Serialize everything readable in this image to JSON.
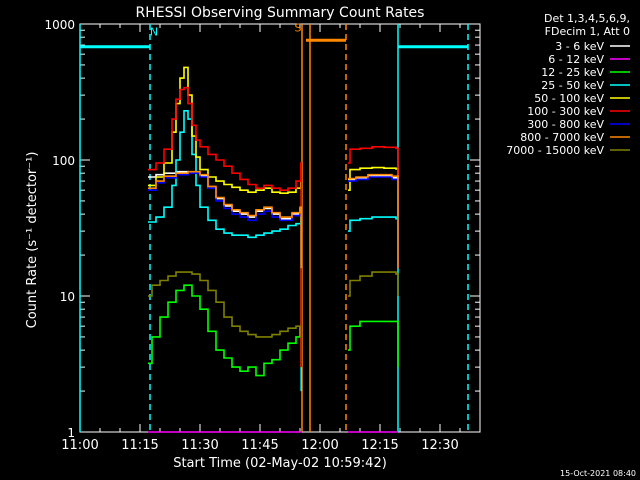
{
  "chart_data": {
    "type": "line",
    "title": "RHESSI Observing Summary Count Rates",
    "xlabel": "Start Time (02-May-02 10:59:42)",
    "ylabel": "Count Rate (s⁻¹ detector⁻¹)",
    "yscale": "log",
    "ylim": [
      1,
      1000
    ],
    "xlim_minutes": [
      0,
      100
    ],
    "x_tick_labels": [
      "11:00",
      "11:15",
      "11:30",
      "11:45",
      "12:00",
      "12:15",
      "12:30"
    ],
    "x_tick_minutes": [
      0,
      15,
      30,
      45,
      60,
      75,
      90
    ],
    "y_tick_labels": [
      "1",
      "10",
      "100",
      "1000"
    ],
    "y_ticks": [
      1,
      10,
      100,
      1000
    ],
    "legend_header": [
      "Det 1,3,4,5,6,9,",
      "FDecim 1, Att 0"
    ],
    "legend_position": "top-right outside",
    "footer_date": "15-Oct-2021 08:40",
    "annotations": [
      {
        "text": "N",
        "x_minutes": 18.5,
        "y": 820,
        "color": "#00ffff"
      },
      {
        "text": "S",
        "x_minutes": 54.5,
        "y": 880,
        "color": "#ff8800"
      }
    ],
    "night_bars": [
      {
        "x0": 0,
        "x1": 17.5,
        "y": 680,
        "color": "#00ffff"
      },
      {
        "x0": 79.5,
        "x1": 97,
        "y": 680,
        "color": "#00ffff"
      }
    ],
    "saa_bar": {
      "x0": 56.5,
      "x1": 66.5,
      "y": 760,
      "color": "#ff8800"
    },
    "vlines": [
      {
        "x": 0,
        "color": "#00ffff",
        "dash": false
      },
      {
        "x": 17.5,
        "color": "#00ffff",
        "dash": true
      },
      {
        "x": 55.5,
        "color": "#ff8800",
        "dash": false
      },
      {
        "x": 57.5,
        "color": "#ff8800",
        "dash": false
      },
      {
        "x": 66.5,
        "color": "#ff8800",
        "dash": true
      },
      {
        "x": 79.5,
        "color": "#00ffff",
        "dash": false
      },
      {
        "x": 97,
        "color": "#00ffff",
        "dash": true
      }
    ],
    "series": [
      {
        "name": "3 - 6 keV",
        "color": "#ffffff",
        "points": [
          [
            17,
            75
          ],
          [
            19,
            78
          ],
          [
            21,
            80
          ],
          [
            24,
            82
          ],
          [
            27,
            80
          ],
          [
            30,
            76
          ],
          [
            32,
            62
          ],
          [
            34,
            52
          ],
          [
            36,
            46
          ],
          [
            38,
            42
          ],
          [
            40,
            40
          ],
          [
            42,
            38
          ],
          [
            44,
            42
          ],
          [
            46,
            44
          ],
          [
            48,
            40
          ],
          [
            50,
            37
          ],
          [
            53,
            40
          ],
          [
            55,
            44
          ],
          [
            55.3,
            16
          ],
          [
            null,
            null
          ],
          [
            67,
            72
          ],
          [
            69,
            74
          ],
          [
            72,
            76
          ],
          [
            75,
            76
          ],
          [
            78,
            74
          ],
          [
            79.5,
            70
          ],
          [
            79.5,
            16
          ]
        ]
      },
      {
        "name": "6 - 12 keV",
        "color": "#ff00ff",
        "points": [
          [
            17,
            1
          ],
          [
            55.5,
            1
          ],
          [
            null,
            null
          ],
          [
            67,
            1
          ],
          [
            79.5,
            1
          ]
        ]
      },
      {
        "name": "12 - 25 keV",
        "color": "#00ff00",
        "points": [
          [
            17,
            3.2
          ],
          [
            18,
            5
          ],
          [
            20,
            7
          ],
          [
            22,
            9
          ],
          [
            24,
            11
          ],
          [
            26,
            12
          ],
          [
            28,
            10
          ],
          [
            30,
            8
          ],
          [
            32,
            5.5
          ],
          [
            34,
            4
          ],
          [
            36,
            3.5
          ],
          [
            38,
            3
          ],
          [
            40,
            2.8
          ],
          [
            42,
            3
          ],
          [
            44,
            2.6
          ],
          [
            46,
            3.2
          ],
          [
            48,
            3.4
          ],
          [
            50,
            4
          ],
          [
            52,
            4.5
          ],
          [
            54,
            5
          ],
          [
            55,
            6
          ],
          [
            null,
            null
          ],
          [
            67,
            4
          ],
          [
            67.5,
            6
          ],
          [
            70,
            6.5
          ],
          [
            73,
            6.5
          ],
          [
            76,
            6.5
          ],
          [
            79,
            6.5
          ],
          [
            79.5,
            3
          ]
        ]
      },
      {
        "name": "25 - 50 keV",
        "color": "#00ffff",
        "points": [
          [
            17,
            35
          ],
          [
            19,
            38
          ],
          [
            21,
            45
          ],
          [
            23,
            65
          ],
          [
            24,
            100
          ],
          [
            25,
            160
          ],
          [
            26,
            230
          ],
          [
            27,
            200
          ],
          [
            28,
            110
          ],
          [
            29,
            65
          ],
          [
            30,
            45
          ],
          [
            32,
            36
          ],
          [
            34,
            31
          ],
          [
            36,
            29
          ],
          [
            38,
            28
          ],
          [
            40,
            28
          ],
          [
            42,
            27
          ],
          [
            44,
            28
          ],
          [
            46,
            29
          ],
          [
            48,
            30
          ],
          [
            50,
            31
          ],
          [
            52,
            33
          ],
          [
            54,
            34
          ],
          [
            55.2,
            38
          ],
          [
            55.3,
            2
          ],
          [
            null,
            null
          ],
          [
            67,
            30
          ],
          [
            67.5,
            36
          ],
          [
            70,
            37
          ],
          [
            73,
            38
          ],
          [
            76,
            38
          ],
          [
            79,
            37
          ],
          [
            79.5,
            20
          ]
        ]
      },
      {
        "name": "50 - 100 keV",
        "color": "#ffff00",
        "points": [
          [
            17,
            65
          ],
          [
            19,
            75
          ],
          [
            21,
            95
          ],
          [
            23,
            160
          ],
          [
            24,
            260
          ],
          [
            25,
            400
          ],
          [
            26,
            480
          ],
          [
            27,
            300
          ],
          [
            28,
            150
          ],
          [
            29,
            105
          ],
          [
            30,
            85
          ],
          [
            32,
            75
          ],
          [
            34,
            70
          ],
          [
            36,
            66
          ],
          [
            38,
            63
          ],
          [
            40,
            60
          ],
          [
            42,
            58
          ],
          [
            44,
            60
          ],
          [
            46,
            62
          ],
          [
            48,
            58
          ],
          [
            50,
            57
          ],
          [
            52,
            58
          ],
          [
            54,
            62
          ],
          [
            55.2,
            70
          ],
          [
            55.3,
            3
          ],
          [
            null,
            null
          ],
          [
            67,
            60
          ],
          [
            67.5,
            85
          ],
          [
            70,
            87
          ],
          [
            73,
            88
          ],
          [
            76,
            87
          ],
          [
            79,
            86
          ],
          [
            79.5,
            40
          ]
        ]
      },
      {
        "name": "100 - 300 keV",
        "color": "#ff0000",
        "points": [
          [
            17,
            85
          ],
          [
            19,
            95
          ],
          [
            21,
            120
          ],
          [
            23,
            200
          ],
          [
            24,
            280
          ],
          [
            25,
            330
          ],
          [
            26,
            340
          ],
          [
            27,
            260
          ],
          [
            28,
            180
          ],
          [
            29,
            140
          ],
          [
            30,
            125
          ],
          [
            32,
            110
          ],
          [
            34,
            100
          ],
          [
            36,
            90
          ],
          [
            38,
            80
          ],
          [
            40,
            72
          ],
          [
            42,
            66
          ],
          [
            44,
            62
          ],
          [
            46,
            65
          ],
          [
            48,
            62
          ],
          [
            50,
            60
          ],
          [
            52,
            62
          ],
          [
            54,
            70
          ],
          [
            55.2,
            95
          ],
          [
            55.3,
            3
          ],
          [
            null,
            null
          ],
          [
            67,
            95
          ],
          [
            67.5,
            120
          ],
          [
            70,
            122
          ],
          [
            73,
            125
          ],
          [
            76,
            124
          ],
          [
            79,
            122
          ],
          [
            79.5,
            60
          ]
        ]
      },
      {
        "name": "300 - 800 keV",
        "color": "#0000ff",
        "points": [
          [
            17,
            60
          ],
          [
            19,
            68
          ],
          [
            21,
            74
          ],
          [
            24,
            78
          ],
          [
            27,
            80
          ],
          [
            30,
            75
          ],
          [
            32,
            62
          ],
          [
            34,
            50
          ],
          [
            36,
            44
          ],
          [
            38,
            40
          ],
          [
            40,
            38
          ],
          [
            42,
            36
          ],
          [
            44,
            40
          ],
          [
            46,
            42
          ],
          [
            48,
            38
          ],
          [
            50,
            36
          ],
          [
            53,
            39
          ],
          [
            55,
            42
          ],
          [
            55.3,
            16
          ],
          [
            null,
            null
          ],
          [
            67,
            70
          ],
          [
            69,
            72
          ],
          [
            72,
            75
          ],
          [
            75,
            75
          ],
          [
            78,
            72
          ],
          [
            79.5,
            68
          ],
          [
            79.5,
            16
          ]
        ]
      },
      {
        "name": "800 - 7000 keV",
        "color": "#ff8800",
        "points": [
          [
            17,
            62
          ],
          [
            19,
            70
          ],
          [
            21,
            76
          ],
          [
            24,
            80
          ],
          [
            27,
            82
          ],
          [
            30,
            78
          ],
          [
            32,
            64
          ],
          [
            34,
            53
          ],
          [
            36,
            47
          ],
          [
            38,
            43
          ],
          [
            40,
            41
          ],
          [
            42,
            39
          ],
          [
            44,
            43
          ],
          [
            46,
            45
          ],
          [
            48,
            41
          ],
          [
            50,
            38
          ],
          [
            53,
            41
          ],
          [
            55,
            45
          ],
          [
            55.3,
            16
          ],
          [
            null,
            null
          ],
          [
            67,
            73
          ],
          [
            69,
            75
          ],
          [
            72,
            78
          ],
          [
            75,
            78
          ],
          [
            78,
            76
          ],
          [
            79.5,
            72
          ],
          [
            79.5,
            16
          ]
        ]
      },
      {
        "name": "7000 - 15000 keV",
        "color": "#808000",
        "points": [
          [
            17,
            10
          ],
          [
            18,
            12
          ],
          [
            20,
            13
          ],
          [
            22,
            14
          ],
          [
            24,
            15
          ],
          [
            26,
            15
          ],
          [
            28,
            14.5
          ],
          [
            30,
            13
          ],
          [
            32,
            11
          ],
          [
            34,
            9
          ],
          [
            36,
            7
          ],
          [
            38,
            6
          ],
          [
            40,
            5.5
          ],
          [
            42,
            5.2
          ],
          [
            44,
            5
          ],
          [
            46,
            5
          ],
          [
            48,
            5.2
          ],
          [
            50,
            5.5
          ],
          [
            52,
            5.8
          ],
          [
            54,
            6
          ],
          [
            55.2,
            6
          ],
          [
            null,
            null
          ],
          [
            67,
            10
          ],
          [
            67.5,
            13
          ],
          [
            70,
            14
          ],
          [
            73,
            15
          ],
          [
            76,
            15
          ],
          [
            79,
            14.5
          ],
          [
            79.5,
            10
          ]
        ]
      }
    ]
  }
}
